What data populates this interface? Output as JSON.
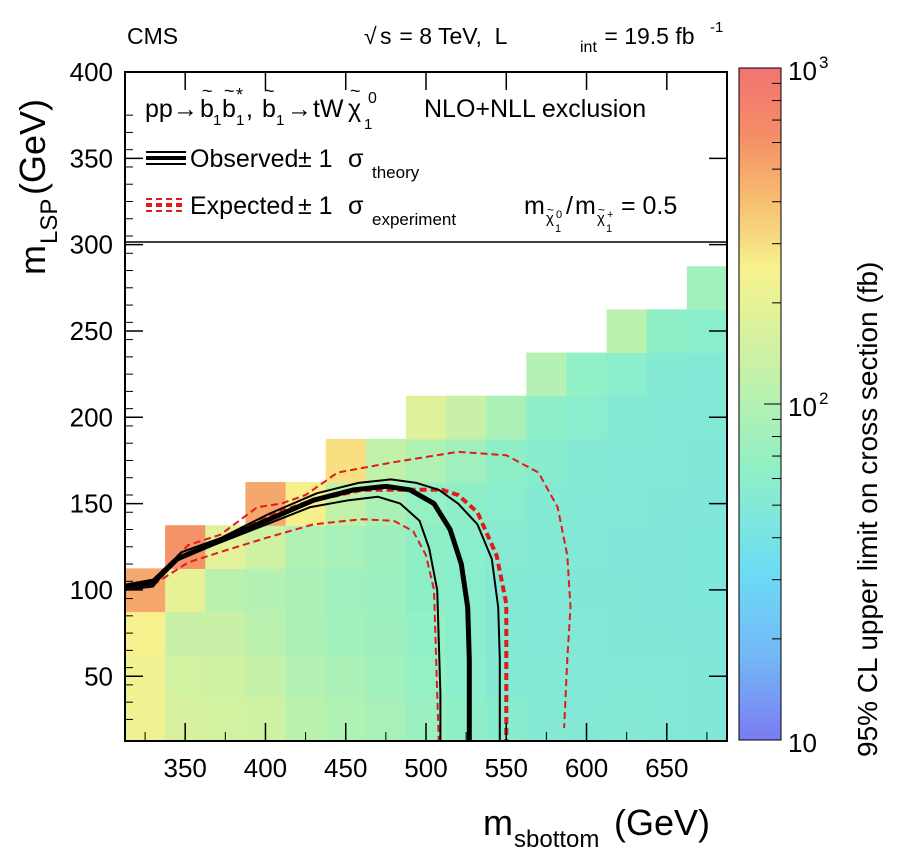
{
  "chart_data": {
    "type": "heatmap",
    "header": {
      "experiment": "CMS",
      "sqrt_s": "s",
      "energy": " = 8 TeV,  L",
      "lumi_sub": "int",
      "lumi_val": " = 19.5 fb",
      "lumi_sup": "-1"
    },
    "xlabel": {
      "main": "m",
      "sub": "sbottom",
      "unit": " (GeV)"
    },
    "ylabel": {
      "main": "m",
      "sub": "LSP",
      "unit": " (GeV)"
    },
    "xlim": [
      312.5,
      687.5
    ],
    "ylim": [
      12.5,
      400
    ],
    "x_ticks": [
      350,
      400,
      450,
      500,
      550,
      600,
      650
    ],
    "y_ticks": [
      50,
      100,
      150,
      200,
      250,
      300,
      350,
      400
    ],
    "colorbar": {
      "label": "95% CL upper limit on cross section (fb)",
      "scale": "log",
      "range": [
        10,
        1000
      ],
      "labels": [
        {
          "value": 1000,
          "base": "10",
          "exp": "3"
        },
        {
          "value": 100,
          "base": "10",
          "exp": "2"
        },
        {
          "value": 10,
          "base": "10",
          "exp": ""
        }
      ]
    },
    "legend": {
      "process": {
        "pp": "pp",
        "arrow": "→",
        "b": "b",
        "tilde": "~",
        "one": "1",
        "star": "*",
        "comma": ", ",
        "tW": " tW",
        "chi": "χ",
        "zero": "0",
        "label": "NLO+NLL exclusion"
      },
      "observed": {
        "text": "Observed",
        "pm": "± 1",
        "sigma": "σ",
        "sub": "theory"
      },
      "expected": {
        "text": "Expected",
        "pm": "± 1",
        "sigma": "σ",
        "sub": "experiment"
      },
      "ratio": {
        "m": "m",
        "chi": "χ",
        "zero": "0",
        "one": "1",
        "plus": "+",
        "slash": "/",
        "value": " = 0.5"
      }
    },
    "cells": [
      {
        "x": 325,
        "y": 25,
        "v": 220
      },
      {
        "x": 325,
        "y": 50,
        "v": 230
      },
      {
        "x": 325,
        "y": 75,
        "v": 250
      },
      {
        "x": 325,
        "y": 100,
        "v": 500
      },
      {
        "x": 350,
        "y": 25,
        "v": 160
      },
      {
        "x": 350,
        "y": 50,
        "v": 150
      },
      {
        "x": 350,
        "y": 75,
        "v": 130
      },
      {
        "x": 350,
        "y": 100,
        "v": 200
      },
      {
        "x": 350,
        "y": 125,
        "v": 600
      },
      {
        "x": 375,
        "y": 25,
        "v": 150
      },
      {
        "x": 375,
        "y": 50,
        "v": 140
      },
      {
        "x": 375,
        "y": 75,
        "v": 130
      },
      {
        "x": 375,
        "y": 100,
        "v": 110
      },
      {
        "x": 375,
        "y": 125,
        "v": 190
      },
      {
        "x": 400,
        "y": 25,
        "v": 140
      },
      {
        "x": 400,
        "y": 50,
        "v": 125
      },
      {
        "x": 400,
        "y": 75,
        "v": 110
      },
      {
        "x": 400,
        "y": 100,
        "v": 100
      },
      {
        "x": 400,
        "y": 125,
        "v": 140
      },
      {
        "x": 400,
        "y": 150,
        "v": 500
      },
      {
        "x": 425,
        "y": 25,
        "v": 110
      },
      {
        "x": 425,
        "y": 50,
        "v": 100
      },
      {
        "x": 425,
        "y": 75,
        "v": 90
      },
      {
        "x": 425,
        "y": 100,
        "v": 90
      },
      {
        "x": 425,
        "y": 125,
        "v": 95
      },
      {
        "x": 425,
        "y": 150,
        "v": 260
      },
      {
        "x": 450,
        "y": 25,
        "v": 95
      },
      {
        "x": 450,
        "y": 50,
        "v": 90
      },
      {
        "x": 450,
        "y": 75,
        "v": 80
      },
      {
        "x": 450,
        "y": 100,
        "v": 78
      },
      {
        "x": 450,
        "y": 125,
        "v": 85
      },
      {
        "x": 450,
        "y": 150,
        "v": 120
      },
      {
        "x": 450,
        "y": 175,
        "v": 300
      },
      {
        "x": 475,
        "y": 25,
        "v": 85
      },
      {
        "x": 475,
        "y": 50,
        "v": 80
      },
      {
        "x": 475,
        "y": 75,
        "v": 75
      },
      {
        "x": 475,
        "y": 100,
        "v": 72
      },
      {
        "x": 475,
        "y": 125,
        "v": 75
      },
      {
        "x": 475,
        "y": 150,
        "v": 90
      },
      {
        "x": 475,
        "y": 175,
        "v": 120
      },
      {
        "x": 500,
        "y": 25,
        "v": 72
      },
      {
        "x": 500,
        "y": 50,
        "v": 68
      },
      {
        "x": 500,
        "y": 75,
        "v": 65
      },
      {
        "x": 500,
        "y": 100,
        "v": 62
      },
      {
        "x": 500,
        "y": 125,
        "v": 62
      },
      {
        "x": 500,
        "y": 150,
        "v": 70
      },
      {
        "x": 500,
        "y": 175,
        "v": 95
      },
      {
        "x": 500,
        "y": 200,
        "v": 180
      },
      {
        "x": 525,
        "y": 25,
        "v": 62
      },
      {
        "x": 525,
        "y": 50,
        "v": 58
      },
      {
        "x": 525,
        "y": 75,
        "v": 56
      },
      {
        "x": 525,
        "y": 100,
        "v": 56
      },
      {
        "x": 525,
        "y": 125,
        "v": 58
      },
      {
        "x": 525,
        "y": 150,
        "v": 62
      },
      {
        "x": 525,
        "y": 175,
        "v": 78
      },
      {
        "x": 525,
        "y": 200,
        "v": 130
      },
      {
        "x": 550,
        "y": 25,
        "v": 55
      },
      {
        "x": 550,
        "y": 50,
        "v": 52
      },
      {
        "x": 550,
        "y": 75,
        "v": 52
      },
      {
        "x": 550,
        "y": 100,
        "v": 52
      },
      {
        "x": 550,
        "y": 125,
        "v": 54
      },
      {
        "x": 550,
        "y": 150,
        "v": 56
      },
      {
        "x": 550,
        "y": 175,
        "v": 62
      },
      {
        "x": 550,
        "y": 200,
        "v": 90
      },
      {
        "x": 575,
        "y": 25,
        "v": 52
      },
      {
        "x": 575,
        "y": 50,
        "v": 52
      },
      {
        "x": 575,
        "y": 75,
        "v": 50
      },
      {
        "x": 575,
        "y": 100,
        "v": 50
      },
      {
        "x": 575,
        "y": 125,
        "v": 52
      },
      {
        "x": 575,
        "y": 150,
        "v": 52
      },
      {
        "x": 575,
        "y": 175,
        "v": 55
      },
      {
        "x": 575,
        "y": 200,
        "v": 60
      },
      {
        "x": 575,
        "y": 225,
        "v": 100
      },
      {
        "x": 600,
        "y": 25,
        "v": 50
      },
      {
        "x": 600,
        "y": 50,
        "v": 50
      },
      {
        "x": 600,
        "y": 75,
        "v": 49
      },
      {
        "x": 600,
        "y": 100,
        "v": 48
      },
      {
        "x": 600,
        "y": 125,
        "v": 49
      },
      {
        "x": 600,
        "y": 150,
        "v": 50
      },
      {
        "x": 600,
        "y": 175,
        "v": 52
      },
      {
        "x": 600,
        "y": 200,
        "v": 56
      },
      {
        "x": 600,
        "y": 225,
        "v": 65
      },
      {
        "x": 625,
        "y": 25,
        "v": 52
      },
      {
        "x": 625,
        "y": 50,
        "v": 50
      },
      {
        "x": 625,
        "y": 75,
        "v": 48
      },
      {
        "x": 625,
        "y": 100,
        "v": 48
      },
      {
        "x": 625,
        "y": 125,
        "v": 47
      },
      {
        "x": 625,
        "y": 150,
        "v": 49
      },
      {
        "x": 625,
        "y": 175,
        "v": 50
      },
      {
        "x": 625,
        "y": 200,
        "v": 52
      },
      {
        "x": 625,
        "y": 225,
        "v": 58
      },
      {
        "x": 625,
        "y": 250,
        "v": 110
      },
      {
        "x": 650,
        "y": 25,
        "v": 50
      },
      {
        "x": 650,
        "y": 50,
        "v": 49
      },
      {
        "x": 650,
        "y": 75,
        "v": 48
      },
      {
        "x": 650,
        "y": 100,
        "v": 47
      },
      {
        "x": 650,
        "y": 125,
        "v": 47
      },
      {
        "x": 650,
        "y": 150,
        "v": 48
      },
      {
        "x": 650,
        "y": 175,
        "v": 49
      },
      {
        "x": 650,
        "y": 200,
        "v": 50
      },
      {
        "x": 650,
        "y": 225,
        "v": 52
      },
      {
        "x": 650,
        "y": 250,
        "v": 62
      },
      {
        "x": 675,
        "y": 25,
        "v": 48
      },
      {
        "x": 675,
        "y": 50,
        "v": 48
      },
      {
        "x": 675,
        "y": 75,
        "v": 47
      },
      {
        "x": 675,
        "y": 100,
        "v": 46
      },
      {
        "x": 675,
        "y": 125,
        "v": 46
      },
      {
        "x": 675,
        "y": 150,
        "v": 47
      },
      {
        "x": 675,
        "y": 175,
        "v": 48
      },
      {
        "x": 675,
        "y": 200,
        "v": 49
      },
      {
        "x": 675,
        "y": 225,
        "v": 50
      },
      {
        "x": 675,
        "y": 250,
        "v": 56
      },
      {
        "x": 675,
        "y": 275,
        "v": 80
      }
    ],
    "series": [
      {
        "role": "observed",
        "points": [
          [
            312,
            102
          ],
          [
            330,
            104
          ],
          [
            345,
            118
          ],
          [
            370,
            128
          ],
          [
            400,
            140
          ],
          [
            430,
            152
          ],
          [
            455,
            158
          ],
          [
            475,
            160
          ],
          [
            490,
            158
          ],
          [
            505,
            150
          ],
          [
            515,
            135
          ],
          [
            522,
            115
          ],
          [
            526,
            90
          ],
          [
            527,
            60
          ],
          [
            527,
            12
          ]
        ]
      },
      {
        "role": "observed_plus1sigma",
        "points": [
          [
            312,
            103
          ],
          [
            330,
            106
          ],
          [
            348,
            122
          ],
          [
            372,
            130
          ],
          [
            402,
            144
          ],
          [
            432,
            156
          ],
          [
            458,
            162
          ],
          [
            478,
            164
          ],
          [
            494,
            162
          ],
          [
            508,
            158
          ],
          [
            520,
            150
          ],
          [
            532,
            138
          ],
          [
            541,
            118
          ],
          [
            545,
            90
          ],
          [
            546,
            60
          ],
          [
            546,
            12
          ]
        ]
      },
      {
        "role": "observed_minus1sigma",
        "points": [
          [
            312,
            100
          ],
          [
            330,
            102
          ],
          [
            342,
            116
          ],
          [
            368,
            126
          ],
          [
            398,
            137
          ],
          [
            428,
            148
          ],
          [
            452,
            152
          ],
          [
            470,
            154
          ],
          [
            484,
            150
          ],
          [
            496,
            140
          ],
          [
            502,
            124
          ],
          [
            507,
            100
          ],
          [
            508,
            70
          ],
          [
            509,
            40
          ],
          [
            509,
            12
          ]
        ]
      },
      {
        "role": "expected",
        "points": [
          [
            312,
            102
          ],
          [
            330,
            104
          ],
          [
            345,
            118
          ],
          [
            370,
            128
          ],
          [
            400,
            142
          ],
          [
            430,
            152
          ],
          [
            460,
            158
          ],
          [
            490,
            158
          ],
          [
            510,
            158
          ],
          [
            520,
            155
          ],
          [
            532,
            145
          ],
          [
            544,
            120
          ],
          [
            550,
            92
          ],
          [
            550,
            60
          ],
          [
            550,
            12
          ]
        ]
      },
      {
        "role": "expected_plus1sigma",
        "points": [
          [
            330,
            106
          ],
          [
            352,
            126
          ],
          [
            372,
            132
          ],
          [
            395,
            148
          ],
          [
            410,
            150
          ],
          [
            425,
            155
          ],
          [
            445,
            168
          ],
          [
            480,
            174
          ],
          [
            520,
            180
          ],
          [
            550,
            178
          ],
          [
            570,
            168
          ],
          [
            582,
            148
          ],
          [
            588,
            120
          ],
          [
            590,
            90
          ],
          [
            588,
            60
          ],
          [
            586,
            20
          ]
        ]
      },
      {
        "role": "expected_minus1sigma",
        "points": [
          [
            330,
            103
          ],
          [
            352,
            116
          ],
          [
            372,
            122
          ],
          [
            400,
            130
          ],
          [
            430,
            138
          ],
          [
            460,
            141
          ],
          [
            480,
            140
          ],
          [
            492,
            134
          ],
          [
            500,
            120
          ],
          [
            505,
            100
          ],
          [
            506,
            70
          ],
          [
            507,
            40
          ],
          [
            508,
            12
          ]
        ]
      }
    ]
  }
}
